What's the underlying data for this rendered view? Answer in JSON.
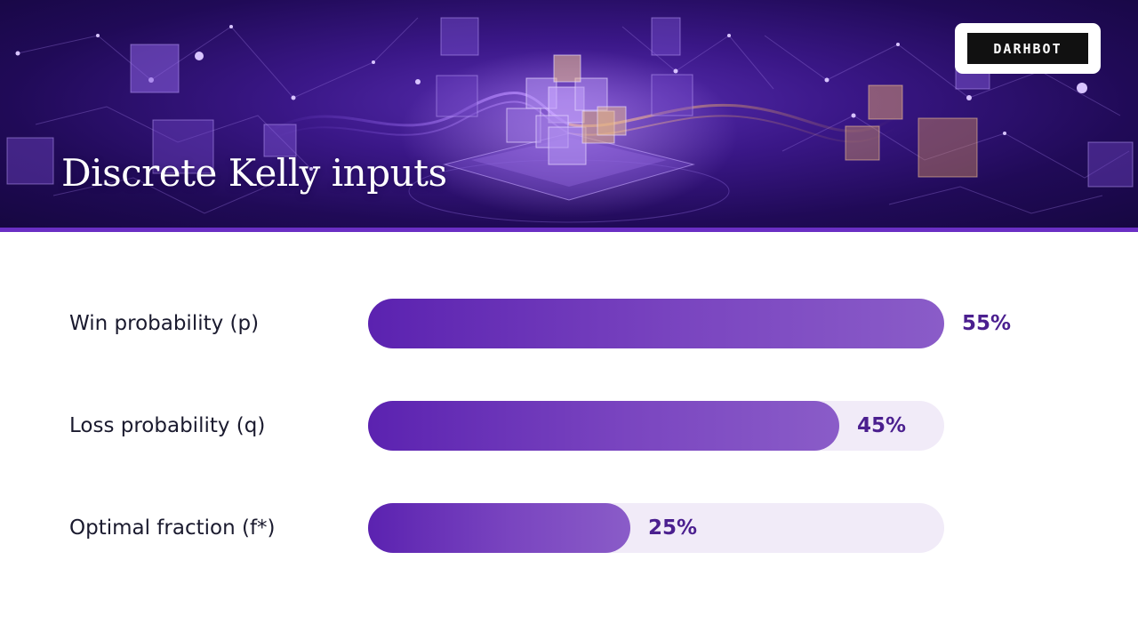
{
  "header": {
    "title": "Discrete Kelly inputs",
    "logo_text": "DARHBOT"
  },
  "colors": {
    "banner_dark": "#200a57",
    "accent": "#6a2fc4",
    "bar_fill_start": "#5b22b0",
    "bar_fill_end": "#8a5cc8",
    "bar_track": "#f1ebf8",
    "value_text": "#4b1f8f"
  },
  "chart_data": {
    "type": "bar",
    "orientation": "horizontal",
    "categories": [
      "Win probability (p)",
      "Loss probability (q)",
      "Optimal fraction (f*)"
    ],
    "values": [
      55,
      45,
      25
    ],
    "value_labels": [
      "55%",
      "45%",
      "25%"
    ],
    "unit": "%",
    "xlim": [
      0,
      55
    ],
    "grid": false,
    "legend": "none"
  }
}
